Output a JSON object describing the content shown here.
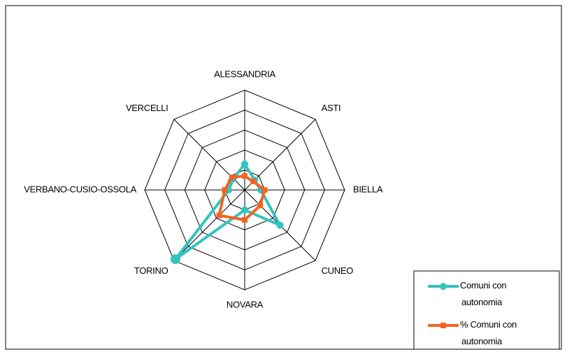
{
  "chart_data": {
    "type": "radar",
    "categories": [
      "ALESSANDRIA",
      "ASTI",
      "BIELLA",
      "CUNEO",
      "NOVARA",
      "TORINO",
      "VERBANO-CUSIO-OSSOLA",
      "VERCELLI"
    ],
    "series": [
      {
        "name": "Comuni con autonomia",
        "color": "#33c3c0",
        "marker": "circle",
        "values": [
          13,
          7,
          8,
          25,
          10,
          49,
          8,
          8
        ]
      },
      {
        "name": "% Comuni con autonomia",
        "color": "#f26522",
        "marker": "square",
        "values": [
          7,
          6,
          10,
          11,
          15,
          18,
          10,
          9
        ]
      }
    ],
    "rlim": [
      0,
      50
    ],
    "rings": 5
  }
}
